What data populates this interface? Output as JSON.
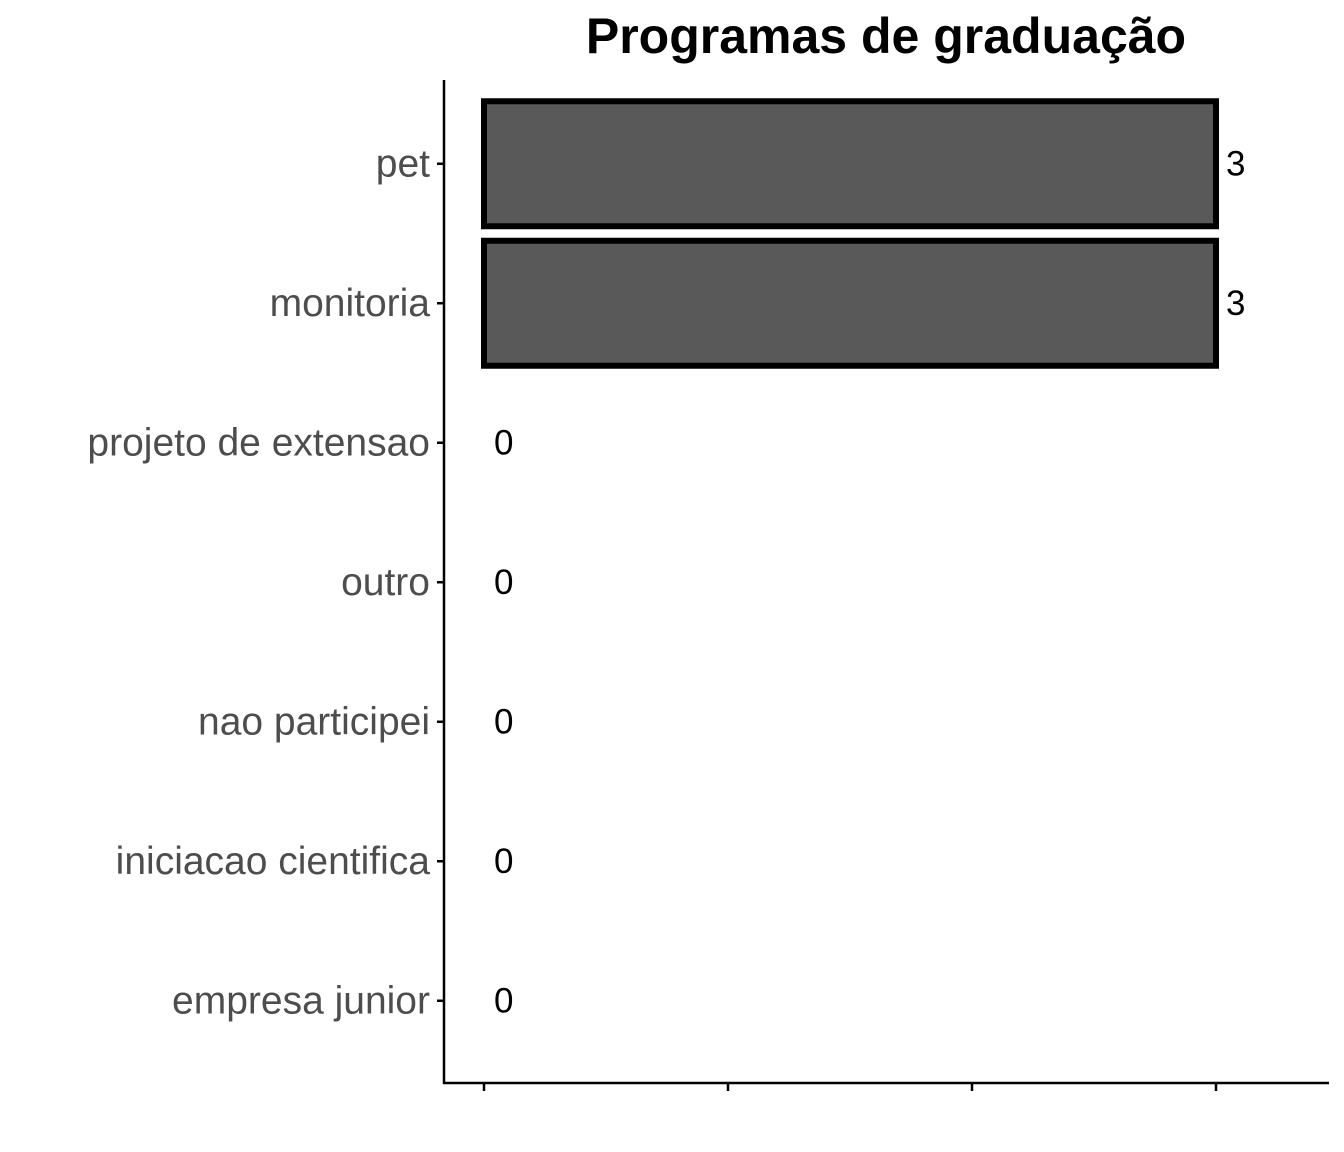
{
  "chart_data": {
    "type": "bar",
    "orientation": "horizontal",
    "title": "Programas de graduação",
    "xlabel": "",
    "ylabel": "",
    "categories": [
      "pet",
      "monitoria",
      "projeto de extensao",
      "outro",
      "nao participei",
      "iniciacao cientifica",
      "empresa junior"
    ],
    "values": [
      3,
      3,
      0,
      0,
      0,
      0,
      0
    ],
    "data_labels": [
      "3",
      "3",
      "0",
      "0",
      "0",
      "0",
      "0"
    ],
    "xlim": [
      0,
      3
    ],
    "x_ticks": [
      0,
      1,
      2,
      3
    ],
    "x_tick_labels_visible": false,
    "grid": false,
    "legend": "none",
    "colors": {
      "bar_fill": "#595959",
      "bar_stroke": "#000000",
      "axis": "#000000",
      "category_text": "#4d4d4d",
      "value_text": "#000000"
    }
  }
}
